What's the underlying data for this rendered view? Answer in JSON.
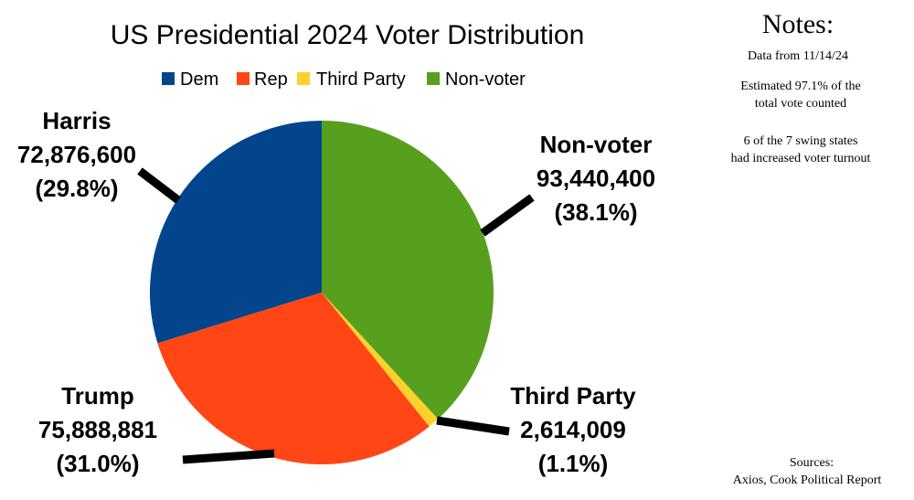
{
  "chart_data": {
    "type": "pie",
    "title": "US Presidential 2024 Voter Distribution",
    "legend_position": "top",
    "legend": [
      "Dem",
      "Rep",
      "Third Party",
      "Non-voter"
    ],
    "slices": [
      {
        "legend": "Dem",
        "name": "Harris",
        "value": 72876600,
        "value_label": "72,876,600",
        "percent_label": "(29.8%)",
        "color": "#02458D"
      },
      {
        "legend": "Rep",
        "name": "Trump",
        "value": 75888881,
        "value_label": "75,888,881",
        "percent_label": "(31.0%)",
        "color": "#FF4614"
      },
      {
        "legend": "Third Party",
        "name": "Third Party",
        "value": 2614009,
        "value_label": "2,614,009",
        "percent_label": "(1.1%)",
        "color": "#FFD12A"
      },
      {
        "legend": "Non-voter",
        "name": "Non-voter",
        "value": 93440400,
        "value_label": "93,440,400",
        "percent_label": "(38.1%)",
        "color": "#56A01E"
      }
    ]
  },
  "notes": {
    "title": "Notes:",
    "date": "Data from 11/14/24",
    "estimate_line1": "Estimated 97.1% of the",
    "estimate_line2": "total vote counted",
    "swing_line1": "6 of the 7 swing states",
    "swing_line2": "had increased voter turnout",
    "sources_label": "Sources:",
    "sources": "Axios, Cook Political Report"
  }
}
